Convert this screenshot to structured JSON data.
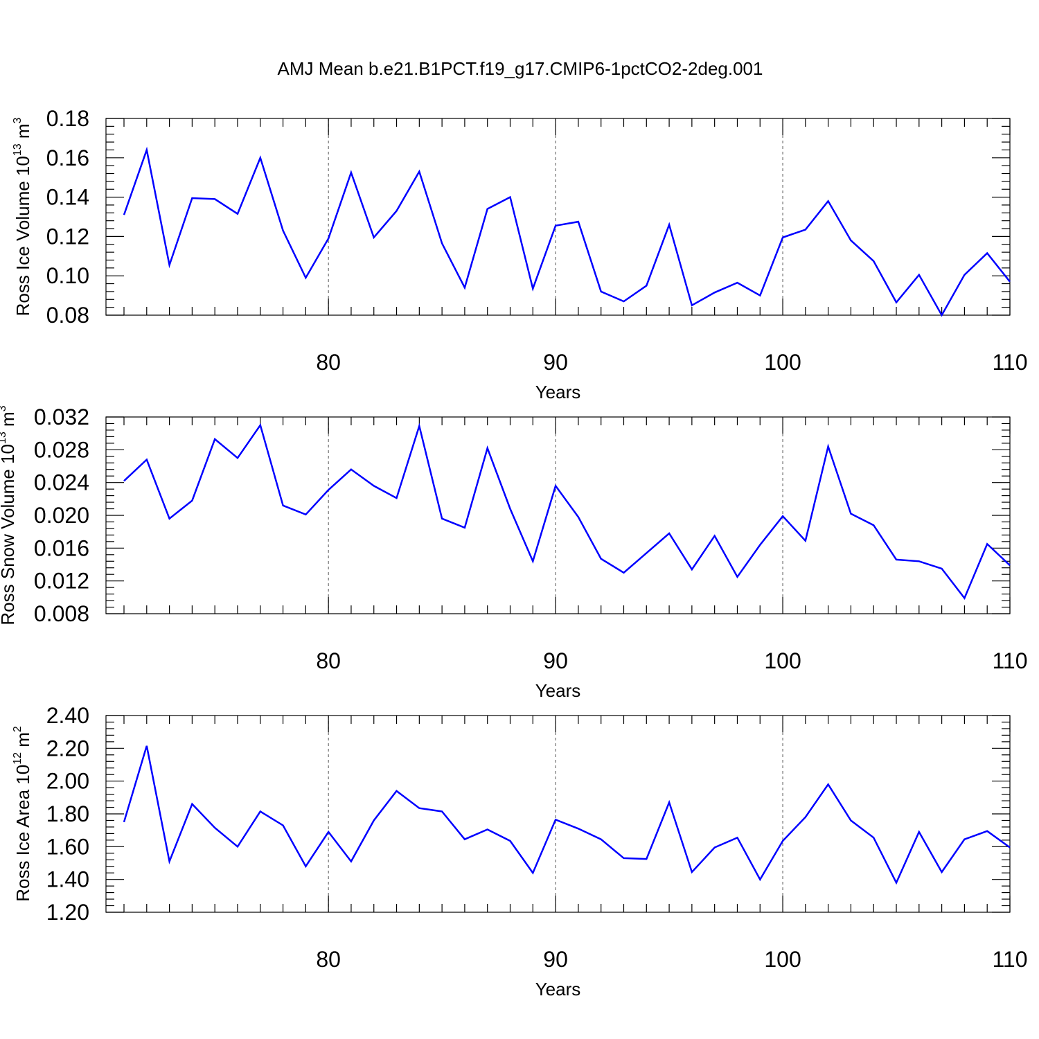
{
  "title": "AMJ Mean b.e21.B1PCT.f19_g17.CMIP6-1pctCO2-2deg.001",
  "colors": {
    "series": "#0000ff",
    "axis": "#000000",
    "grid": "#555555"
  },
  "chart_data": [
    {
      "type": "line",
      "name": "ross-ice-volume",
      "ylabel_main": "Ross Ice Volume 10",
      "ylabel_exp": "13",
      "ylabel_unit": " m",
      "ylabel_unit_exp": "3",
      "xlabel": "Years",
      "xlim": [
        71,
        110
      ],
      "ylim": [
        0.08,
        0.18
      ],
      "xticks": [
        80,
        90,
        100,
        110
      ],
      "xtick_labels": [
        "80",
        "90",
        "100",
        "110"
      ],
      "yticks": [
        0.08,
        0.1,
        0.12,
        0.14,
        0.16,
        0.18
      ],
      "ytick_labels": [
        "0.08",
        "0.10",
        "0.12",
        "0.14",
        "0.16",
        "0.18"
      ],
      "x": [
        71,
        72,
        73,
        74,
        75,
        76,
        77,
        78,
        79,
        80,
        81,
        82,
        83,
        84,
        85,
        86,
        87,
        88,
        89,
        90,
        91,
        92,
        93,
        94,
        95,
        96,
        97,
        98,
        99,
        100,
        101,
        102,
        103,
        104,
        105,
        106,
        107,
        108,
        109,
        110
      ],
      "values": [
        0.131,
        0.164,
        0.1055,
        0.1395,
        0.139,
        0.1315,
        0.16,
        0.123,
        0.099,
        0.119,
        0.1525,
        0.1195,
        0.133,
        0.153,
        0.1165,
        0.094,
        0.134,
        0.14,
        0.0935,
        0.1255,
        0.1275,
        0.092,
        0.087,
        0.095,
        0.126,
        0.085,
        0.0915,
        0.0965,
        0.09,
        0.1195,
        0.1235,
        0.138,
        0.118,
        0.1075,
        0.0865,
        0.1005,
        0.08,
        0.1005,
        0.1115,
        0.097
      ]
    },
    {
      "type": "line",
      "name": "ross-snow-volume",
      "ylabel_main": "Ross Snow Volume 10",
      "ylabel_exp": "13",
      "ylabel_unit": " m",
      "ylabel_unit_exp": "3",
      "xlabel": "Years",
      "xlim": [
        71,
        110
      ],
      "ylim": [
        0.008,
        0.032
      ],
      "xticks": [
        80,
        90,
        100,
        110
      ],
      "xtick_labels": [
        "80",
        "90",
        "100",
        "110"
      ],
      "yticks": [
        0.008,
        0.012,
        0.016,
        0.02,
        0.024,
        0.028,
        0.032
      ],
      "ytick_labels": [
        "0.008",
        "0.012",
        "0.016",
        "0.020",
        "0.024",
        "0.028",
        "0.032"
      ],
      "x": [
        71,
        72,
        73,
        74,
        75,
        76,
        77,
        78,
        79,
        80,
        81,
        82,
        83,
        84,
        85,
        86,
        87,
        88,
        89,
        90,
        91,
        92,
        93,
        94,
        95,
        96,
        97,
        98,
        99,
        100,
        101,
        102,
        103,
        104,
        105,
        106,
        107,
        108,
        109,
        110
      ],
      "values": [
        0.0242,
        0.0268,
        0.0196,
        0.0218,
        0.0293,
        0.027,
        0.031,
        0.0212,
        0.0201,
        0.0231,
        0.0256,
        0.0236,
        0.0221,
        0.0309,
        0.0196,
        0.0185,
        0.0282,
        0.0208,
        0.0144,
        0.0236,
        0.0198,
        0.0147,
        0.013,
        0.0154,
        0.0178,
        0.0134,
        0.0175,
        0.0125,
        0.0164,
        0.0199,
        0.0169,
        0.0284,
        0.0202,
        0.0188,
        0.0146,
        0.0144,
        0.0135,
        0.0099,
        0.0165,
        0.0139
      ]
    },
    {
      "type": "line",
      "name": "ross-ice-area",
      "ylabel_main": "Ross Ice Area 10",
      "ylabel_exp": "12",
      "ylabel_unit": " m",
      "ylabel_unit_exp": "2",
      "xlabel": "Years",
      "xlim": [
        71,
        110
      ],
      "ylim": [
        1.2,
        2.4
      ],
      "xticks": [
        80,
        90,
        100,
        110
      ],
      "xtick_labels": [
        "80",
        "90",
        "100",
        "110"
      ],
      "yticks": [
        1.2,
        1.4,
        1.6,
        1.8,
        2.0,
        2.2,
        2.4
      ],
      "ytick_labels": [
        "1.20",
        "1.40",
        "1.60",
        "1.80",
        "2.00",
        "2.20",
        "2.40"
      ],
      "x": [
        71,
        72,
        73,
        74,
        75,
        76,
        77,
        78,
        79,
        80,
        81,
        82,
        83,
        84,
        85,
        86,
        87,
        88,
        89,
        90,
        91,
        92,
        93,
        94,
        95,
        96,
        97,
        98,
        99,
        100,
        101,
        102,
        103,
        104,
        105,
        106,
        107,
        108,
        109,
        110
      ],
      "values": [
        1.75,
        2.215,
        1.51,
        1.86,
        1.715,
        1.6,
        1.815,
        1.73,
        1.48,
        1.69,
        1.51,
        1.76,
        1.94,
        1.835,
        1.815,
        1.645,
        1.705,
        1.635,
        1.44,
        1.765,
        1.71,
        1.645,
        1.53,
        1.525,
        1.87,
        1.445,
        1.595,
        1.655,
        1.4,
        1.635,
        1.78,
        1.98,
        1.76,
        1.655,
        1.38,
        1.69,
        1.445,
        1.645,
        1.695,
        1.595
      ]
    }
  ]
}
